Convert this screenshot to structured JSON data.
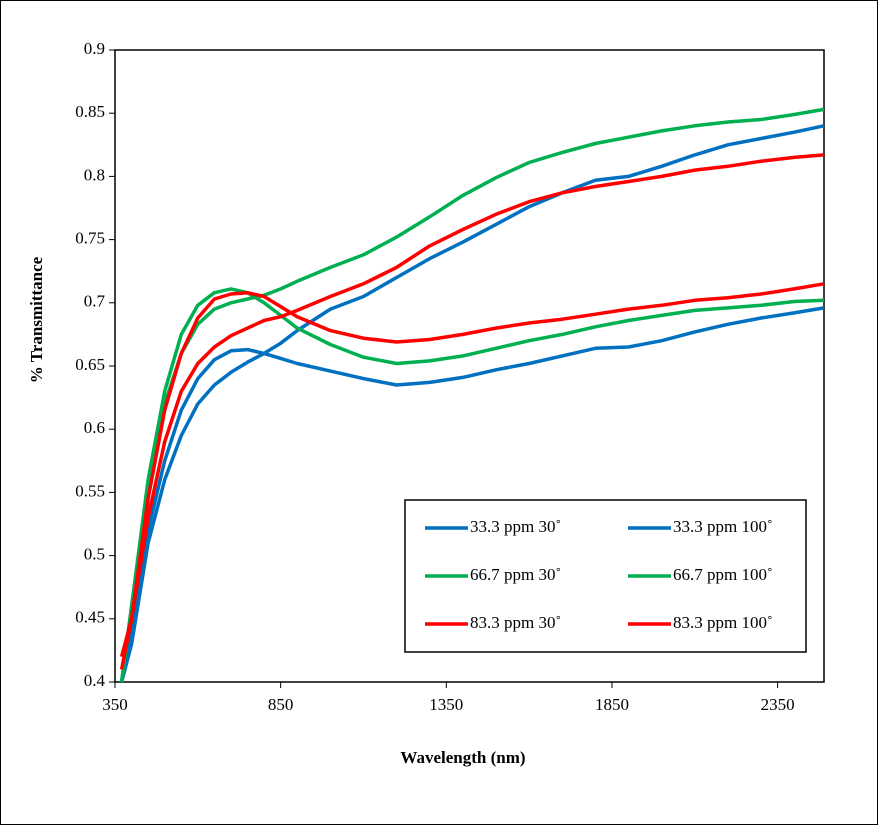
{
  "chart_data": {
    "type": "line",
    "xlabel": "Wavelength (nm)",
    "ylabel": "% Transmittance",
    "x": [
      370,
      400,
      450,
      500,
      550,
      600,
      650,
      700,
      750,
      800,
      850,
      900,
      1000,
      1100,
      1200,
      1300,
      1400,
      1500,
      1600,
      1700,
      1800,
      1900,
      2000,
      2100,
      2200,
      2300,
      2400,
      2490
    ],
    "series": [
      {
        "name": "33.3 ppm 30˚",
        "color": "#0070c0",
        "values": [
          0.4,
          0.44,
          0.52,
          0.575,
          0.615,
          0.64,
          0.655,
          0.662,
          0.663,
          0.66,
          0.656,
          0.652,
          0.646,
          0.64,
          0.635,
          0.637,
          0.641,
          0.647,
          0.652,
          0.658,
          0.664,
          0.665,
          0.67,
          0.677,
          0.683,
          0.688,
          0.692,
          0.696
        ]
      },
      {
        "name": "33.3 ppm 100˚",
        "color": "#0070c0",
        "values": [
          0.4,
          0.43,
          0.51,
          0.56,
          0.595,
          0.62,
          0.635,
          0.645,
          0.653,
          0.66,
          0.668,
          0.678,
          0.695,
          0.705,
          0.72,
          0.735,
          0.748,
          0.762,
          0.776,
          0.787,
          0.797,
          0.8,
          0.808,
          0.817,
          0.825,
          0.83,
          0.835,
          0.84
        ]
      },
      {
        "name": "66.7 ppm 30˚",
        "color": "#00b050",
        "values": [
          0.4,
          0.46,
          0.56,
          0.63,
          0.675,
          0.698,
          0.708,
          0.711,
          0.708,
          0.7,
          0.69,
          0.68,
          0.667,
          0.657,
          0.652,
          0.654,
          0.658,
          0.664,
          0.67,
          0.675,
          0.681,
          0.686,
          0.69,
          0.694,
          0.696,
          0.698,
          0.701,
          0.702
        ]
      },
      {
        "name": "66.7 ppm 100˚",
        "color": "#00b050",
        "values": [
          0.4,
          0.46,
          0.555,
          0.62,
          0.66,
          0.683,
          0.695,
          0.7,
          0.703,
          0.706,
          0.711,
          0.717,
          0.728,
          0.738,
          0.752,
          0.768,
          0.785,
          0.799,
          0.811,
          0.819,
          0.826,
          0.831,
          0.836,
          0.84,
          0.843,
          0.845,
          0.849,
          0.853
        ]
      },
      {
        "name": "83.3 ppm 30˚",
        "color": "#ff0000",
        "values": [
          0.41,
          0.45,
          0.545,
          0.615,
          0.66,
          0.688,
          0.703,
          0.707,
          0.708,
          0.705,
          0.697,
          0.689,
          0.678,
          0.672,
          0.669,
          0.671,
          0.675,
          0.68,
          0.684,
          0.687,
          0.691,
          0.695,
          0.698,
          0.702,
          0.704,
          0.707,
          0.711,
          0.715
        ]
      },
      {
        "name": "83.3 ppm 100˚",
        "color": "#ff0000",
        "values": [
          0.42,
          0.45,
          0.53,
          0.59,
          0.63,
          0.652,
          0.665,
          0.674,
          0.68,
          0.686,
          0.689,
          0.694,
          0.705,
          0.715,
          0.728,
          0.745,
          0.758,
          0.77,
          0.78,
          0.787,
          0.792,
          0.796,
          0.8,
          0.805,
          0.808,
          0.812,
          0.815,
          0.817
        ]
      }
    ],
    "xlim": [
      350,
      2490
    ],
    "xticks": [
      350,
      850,
      1350,
      1850,
      2350
    ],
    "ylim": [
      0.4,
      0.9
    ],
    "yticks": [
      0.4,
      0.45,
      0.5,
      0.55,
      0.6,
      0.65,
      0.7,
      0.75,
      0.8,
      0.85,
      0.9
    ],
    "grid": false,
    "legend": "lower right"
  }
}
